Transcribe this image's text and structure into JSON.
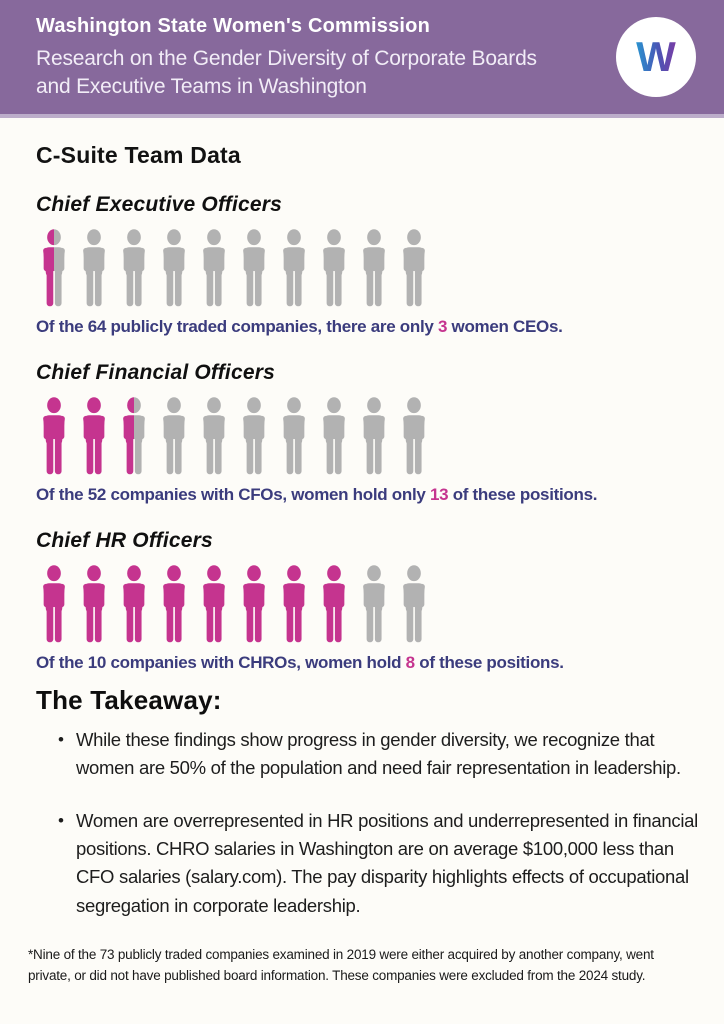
{
  "header": {
    "title": "Washington State Women's Commission",
    "subtitle": "Research on the Gender Diversity of Corporate Boards and Executive Teams in Washington",
    "logo_letter": "W",
    "colors": {
      "background": "#87699c",
      "logo_blue": "#2a93cf",
      "logo_purple": "#7a3da5"
    }
  },
  "page_title": "C-Suite Team Data",
  "sections": [
    {
      "heading": "Chief Executive Officers",
      "caption": {
        "before": "Of the 64 publicly traded companies, there are only ",
        "number": "3",
        "after": " women CEOs."
      }
    },
    {
      "heading": "Chief Financial Officers",
      "caption": {
        "before": "Of the 52 companies with CFOs, women hold only ",
        "number": "13",
        "after": " of these positions."
      }
    },
    {
      "heading": "Chief HR Officers",
      "caption": {
        "before": "Of the 10 companies with CHROs, women hold ",
        "number": "8",
        "after": " of these positions."
      }
    }
  ],
  "takeaway": {
    "heading": "The Takeaway:",
    "bullets": [
      "While these findings show progress in gender diversity, we recognize that women are 50% of the population and need fair representation in leadership.",
      "Women are overrepresented in HR positions and underrepresented in financial positions. CHRO salaries in Washington are on average $100,000 less than CFO salaries (salary.com). The pay disparity highlights effects of occupational segregation in corporate leadership."
    ]
  },
  "footnote": "*Nine of the 73 publicly traded companies examined in 2019 were either acquired by another company, went private, or did not have published board information. These companies were excluded from the 2024 study.",
  "chart_data": {
    "type": "bar",
    "style": "pictograph — row of 10 person icons per category, partial icons for fractions",
    "title": "C-Suite Team Data",
    "categories": [
      "Chief Executive Officers",
      "Chief Financial Officers",
      "Chief HR Officers"
    ],
    "series": [
      {
        "name": "Chief Executive Officers",
        "companies": 64,
        "women": 3,
        "icons_total": 10,
        "icons_filled": 0.5
      },
      {
        "name": "Chief Financial Officers",
        "companies": 52,
        "women": 13,
        "icons_total": 10,
        "icons_filled": 2.5
      },
      {
        "name": "Chief HR Officers",
        "companies": 10,
        "women": 8,
        "icons_total": 10,
        "icons_filled": 8
      }
    ],
    "colors": {
      "women": "#c5348f",
      "other": "#b2b2b2",
      "caption_text": "#3b3c7d"
    },
    "legend": "pink = positions held by women, gray = positions held by men"
  }
}
